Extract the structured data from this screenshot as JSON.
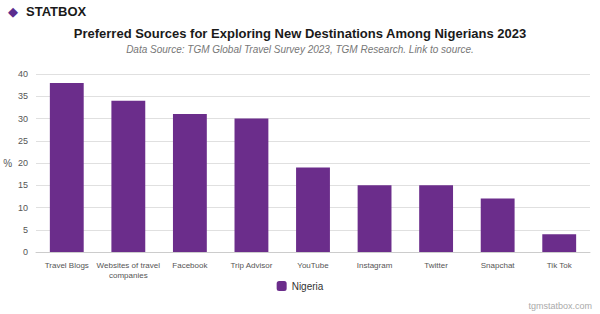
{
  "chart_data": {
    "type": "bar",
    "title": "Preferred Sources for Exploring New Destinations Among Nigerians 2023",
    "subtitle": "Data Source: TGM Global Travel Survey 2023, TGM Research. Link to source.",
    "categories": [
      "Travel Blogs",
      "Websites of travel\ncompanies",
      "Facebook",
      "Trip Advisor",
      "YouTube",
      "Instagram",
      "Twitter",
      "Snapchat",
      "Tik Tok"
    ],
    "series": [
      {
        "name": "Nigeria",
        "color": "#6B2D8B",
        "values": [
          38,
          34,
          31,
          30,
          19,
          15,
          15,
          12,
          4
        ]
      }
    ],
    "ylabel": "%",
    "ylim": [
      0,
      40
    ],
    "yticks": [
      0,
      5,
      10,
      15,
      20,
      25,
      30,
      35,
      40
    ],
    "grid": true,
    "legend": "bottom",
    "annotations": [
      {
        "text": "◆",
        "color": "#5B2D8E"
      },
      {
        "text": "STATBOX",
        "color": "#1a1a1a"
      },
      {
        "text": "tgmstatbox.com",
        "color": "#aaaaaa"
      }
    ]
  }
}
